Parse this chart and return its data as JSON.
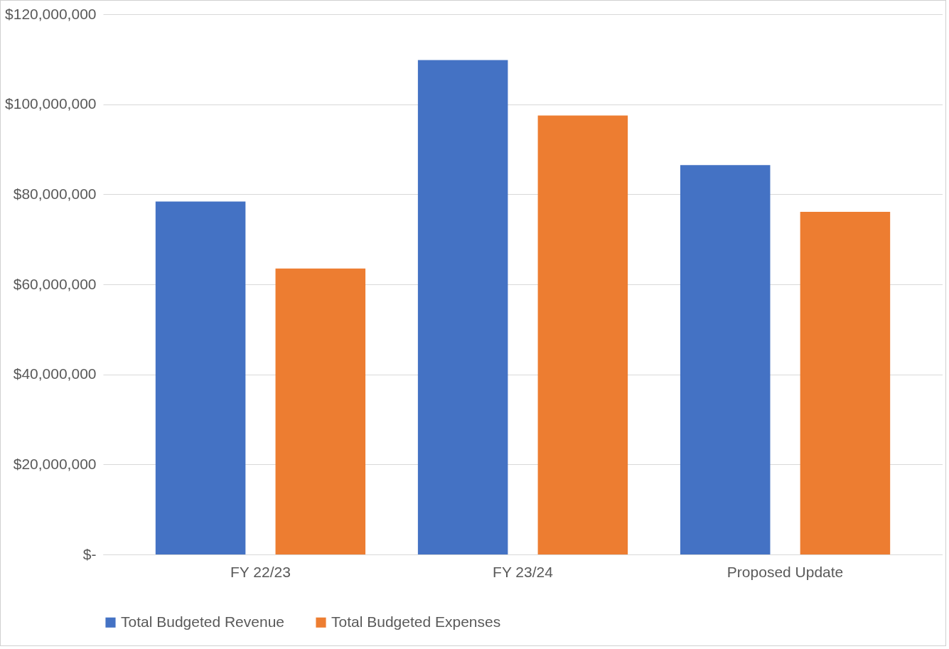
{
  "chart_data": {
    "type": "bar",
    "categories": [
      "FY 22/23",
      "FY 23/24",
      "Proposed Update"
    ],
    "series": [
      {
        "name": "Total Budgeted Revenue",
        "color": "#4472c4",
        "values": [
          78400000,
          109800000,
          86500000
        ]
      },
      {
        "name": "Total Budgeted Expenses",
        "color": "#ed7d31",
        "values": [
          63500000,
          97500000,
          76100000
        ]
      }
    ],
    "ylim": [
      0,
      120000000
    ],
    "yticks": [
      {
        "value": 0,
        "label": "$-"
      },
      {
        "value": 20000000,
        "label": "$20,000,000"
      },
      {
        "value": 40000000,
        "label": "$40,000,000"
      },
      {
        "value": 60000000,
        "label": "$60,000,000"
      },
      {
        "value": 80000000,
        "label": "$80,000,000"
      },
      {
        "value": 100000000,
        "label": "$100,000,000"
      },
      {
        "value": 120000000,
        "label": "$120,000,000"
      }
    ],
    "grid": "y",
    "legend": "bottom"
  }
}
